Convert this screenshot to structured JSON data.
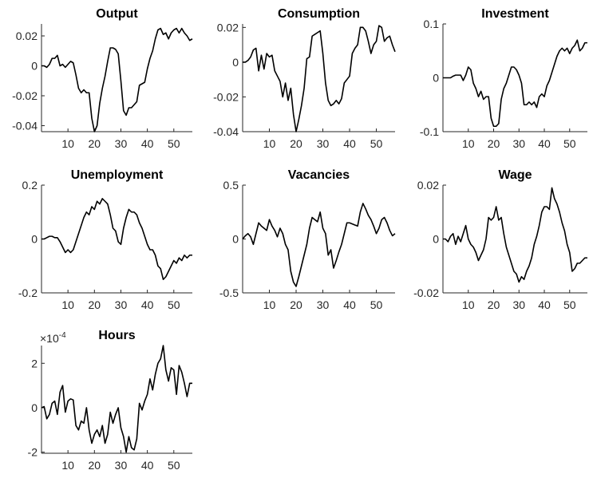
{
  "chart_data": [
    {
      "type": "line",
      "title": "Output",
      "color": "#000000",
      "x": [
        0,
        1,
        2,
        3,
        4,
        5,
        6,
        7,
        8,
        9,
        10,
        11,
        12,
        13,
        14,
        15,
        16,
        17,
        18,
        19,
        20,
        21,
        22,
        23,
        24,
        25,
        26,
        27,
        28,
        29,
        30,
        31,
        32,
        33,
        34,
        35,
        36,
        37,
        38,
        39,
        40,
        41,
        42,
        43,
        44,
        45,
        46,
        47,
        48,
        49,
        50,
        51,
        52,
        53,
        54,
        55,
        56,
        57
      ],
      "values": [
        0,
        0,
        -0.001,
        0.001,
        0.005,
        0.005,
        0.007,
        0,
        0.001,
        -0.001,
        0.001,
        0.003,
        0.002,
        -0.006,
        -0.015,
        -0.018,
        -0.016,
        -0.018,
        -0.018,
        -0.035,
        -0.044,
        -0.04,
        -0.025,
        -0.015,
        -0.007,
        0.003,
        0.012,
        0.012,
        0.011,
        0.008,
        -0.01,
        -0.03,
        -0.033,
        -0.028,
        -0.028,
        -0.026,
        -0.024,
        -0.013,
        -0.012,
        -0.011,
        -0.002,
        0.005,
        0.01,
        0.018,
        0.024,
        0.025,
        0.021,
        0.022,
        0.018,
        0.022,
        0.024,
        0.025,
        0.022,
        0.025,
        0.022,
        0.02,
        0.017,
        0.018
      ],
      "xlim": [
        0,
        57
      ],
      "xticks": [
        10,
        20,
        30,
        40,
        50
      ],
      "ylim": [
        -0.044,
        0.028
      ],
      "yticks": [
        -0.04,
        -0.02,
        0,
        0.02
      ]
    },
    {
      "type": "line",
      "title": "Consumption",
      "color": "#000000",
      "x": [
        0,
        1,
        2,
        3,
        4,
        5,
        6,
        7,
        8,
        9,
        10,
        11,
        12,
        13,
        14,
        15,
        16,
        17,
        18,
        19,
        20,
        21,
        22,
        23,
        24,
        25,
        26,
        27,
        28,
        29,
        30,
        31,
        32,
        33,
        34,
        35,
        36,
        37,
        38,
        39,
        40,
        41,
        42,
        43,
        44,
        45,
        46,
        47,
        48,
        49,
        50,
        51,
        52,
        53,
        54,
        55,
        56,
        57
      ],
      "values": [
        0,
        0,
        0.001,
        0.003,
        0.007,
        0.008,
        -0.005,
        0.004,
        -0.004,
        0.005,
        0.003,
        0.004,
        -0.005,
        -0.008,
        -0.011,
        -0.02,
        -0.012,
        -0.022,
        -0.015,
        -0.03,
        -0.04,
        -0.033,
        -0.025,
        -0.015,
        0.002,
        0.003,
        0.015,
        0.016,
        0.017,
        0.018,
        0.005,
        -0.012,
        -0.022,
        -0.025,
        -0.024,
        -0.022,
        -0.024,
        -0.021,
        -0.012,
        -0.01,
        -0.008,
        0.005,
        0.008,
        0.01,
        0.02,
        0.02,
        0.018,
        0.012,
        0.005,
        0.01,
        0.012,
        0.021,
        0.02,
        0.012,
        0.014,
        0.015,
        0.01,
        0.006
      ],
      "xlim": [
        0,
        57
      ],
      "xticks": [
        10,
        20,
        30,
        40,
        50
      ],
      "ylim": [
        -0.04,
        0.022
      ],
      "yticks": [
        -0.04,
        -0.02,
        0,
        0.02
      ]
    },
    {
      "type": "line",
      "title": "Investment",
      "color": "#000000",
      "x": [
        0,
        1,
        2,
        3,
        4,
        5,
        6,
        7,
        8,
        9,
        10,
        11,
        12,
        13,
        14,
        15,
        16,
        17,
        18,
        19,
        20,
        21,
        22,
        23,
        24,
        25,
        26,
        27,
        28,
        29,
        30,
        31,
        32,
        33,
        34,
        35,
        36,
        37,
        38,
        39,
        40,
        41,
        42,
        43,
        44,
        45,
        46,
        47,
        48,
        49,
        50,
        51,
        52,
        53,
        54,
        55,
        56,
        57
      ],
      "values": [
        0,
        0,
        0,
        0,
        0.003,
        0.005,
        0.005,
        0.005,
        -0.005,
        0.005,
        0.02,
        0.015,
        -0.01,
        -0.02,
        -0.035,
        -0.025,
        -0.04,
        -0.035,
        -0.035,
        -0.075,
        -0.09,
        -0.09,
        -0.085,
        -0.04,
        -0.02,
        -0.01,
        0.005,
        0.02,
        0.02,
        0.015,
        0.005,
        -0.01,
        -0.05,
        -0.05,
        -0.045,
        -0.05,
        -0.045,
        -0.055,
        -0.035,
        -0.03,
        -0.035,
        -0.015,
        -0.005,
        0.01,
        0.025,
        0.04,
        0.05,
        0.055,
        0.05,
        0.055,
        0.045,
        0.055,
        0.06,
        0.07,
        0.05,
        0.055,
        0.065,
        0.065
      ],
      "xlim": [
        0,
        57
      ],
      "xticks": [
        10,
        20,
        30,
        40,
        50
      ],
      "ylim": [
        -0.1,
        0.1
      ],
      "yticks": [
        -0.1,
        0,
        0.1
      ]
    },
    {
      "type": "line",
      "title": "Unemployment",
      "color": "#000000",
      "x": [
        0,
        1,
        2,
        3,
        4,
        5,
        6,
        7,
        8,
        9,
        10,
        11,
        12,
        13,
        14,
        15,
        16,
        17,
        18,
        19,
        20,
        21,
        22,
        23,
        24,
        25,
        26,
        27,
        28,
        29,
        30,
        31,
        32,
        33,
        34,
        35,
        36,
        37,
        38,
        39,
        40,
        41,
        42,
        43,
        44,
        45,
        46,
        47,
        48,
        49,
        50,
        51,
        52,
        53,
        54,
        55,
        56,
        57
      ],
      "values": [
        0,
        0,
        0.005,
        0.01,
        0.01,
        0.005,
        0.005,
        -0.01,
        -0.03,
        -0.05,
        -0.04,
        -0.05,
        -0.04,
        -0.01,
        0.02,
        0.05,
        0.08,
        0.1,
        0.09,
        0.12,
        0.11,
        0.14,
        0.13,
        0.15,
        0.14,
        0.13,
        0.09,
        0.04,
        0.03,
        -0.01,
        -0.02,
        0.04,
        0.08,
        0.11,
        0.1,
        0.1,
        0.09,
        0.06,
        0.04,
        0.01,
        -0.02,
        -0.04,
        -0.04,
        -0.06,
        -0.1,
        -0.11,
        -0.15,
        -0.14,
        -0.12,
        -0.1,
        -0.08,
        -0.09,
        -0.07,
        -0.08,
        -0.06,
        -0.07,
        -0.06,
        -0.06
      ],
      "xlim": [
        0,
        57
      ],
      "xticks": [
        10,
        20,
        30,
        40,
        50
      ],
      "ylim": [
        -0.2,
        0.2
      ],
      "yticks": [
        -0.2,
        0,
        0.2
      ]
    },
    {
      "type": "line",
      "title": "Vacancies",
      "color": "#000000",
      "x": [
        0,
        1,
        2,
        3,
        4,
        5,
        6,
        7,
        8,
        9,
        10,
        11,
        12,
        13,
        14,
        15,
        16,
        17,
        18,
        19,
        20,
        21,
        22,
        23,
        24,
        25,
        26,
        27,
        28,
        29,
        30,
        31,
        32,
        33,
        34,
        35,
        36,
        37,
        38,
        39,
        40,
        41,
        42,
        43,
        44,
        45,
        46,
        47,
        48,
        49,
        50,
        51,
        52,
        53,
        54,
        55,
        56,
        57
      ],
      "values": [
        0,
        0.03,
        0.05,
        0.02,
        -0.05,
        0.05,
        0.15,
        0.12,
        0.1,
        0.08,
        0.18,
        0.12,
        0.08,
        0.02,
        0.1,
        0.05,
        -0.05,
        -0.1,
        -0.3,
        -0.4,
        -0.44,
        -0.35,
        -0.25,
        -0.15,
        -0.05,
        0.1,
        0.2,
        0.18,
        0.16,
        0.25,
        0.1,
        0.05,
        -0.15,
        -0.1,
        -0.27,
        -0.2,
        -0.12,
        -0.05,
        0.05,
        0.15,
        0.15,
        0.14,
        0.13,
        0.12,
        0.25,
        0.33,
        0.28,
        0.22,
        0.18,
        0.12,
        0.05,
        0.1,
        0.18,
        0.2,
        0.15,
        0.08,
        0.03,
        0.05
      ],
      "xlim": [
        0,
        57
      ],
      "xticks": [
        10,
        20,
        30,
        40,
        50
      ],
      "ylim": [
        -0.5,
        0.5
      ],
      "yticks": [
        -0.5,
        0,
        0.5
      ]
    },
    {
      "type": "line",
      "title": "Wage",
      "color": "#000000",
      "x": [
        0,
        1,
        2,
        3,
        4,
        5,
        6,
        7,
        8,
        9,
        10,
        11,
        12,
        13,
        14,
        15,
        16,
        17,
        18,
        19,
        20,
        21,
        22,
        23,
        24,
        25,
        26,
        27,
        28,
        29,
        30,
        31,
        32,
        33,
        34,
        35,
        36,
        37,
        38,
        39,
        40,
        41,
        42,
        43,
        44,
        45,
        46,
        47,
        48,
        49,
        50,
        51,
        52,
        53,
        54,
        55,
        56,
        57
      ],
      "values": [
        0,
        0,
        -0.001,
        0.001,
        0.002,
        -0.002,
        0.001,
        -0.001,
        0.002,
        0.005,
        0,
        -0.002,
        -0.003,
        -0.005,
        -0.008,
        -0.006,
        -0.004,
        0,
        0.008,
        0.007,
        0.008,
        0.012,
        0.007,
        0.008,
        0.002,
        -0.003,
        -0.006,
        -0.009,
        -0.012,
        -0.013,
        -0.016,
        -0.014,
        -0.015,
        -0.012,
        -0.01,
        -0.007,
        -0.002,
        0.001,
        0.005,
        0.01,
        0.012,
        0.012,
        0.011,
        0.019,
        0.015,
        0.013,
        0.01,
        0.006,
        0.003,
        -0.002,
        -0.005,
        -0.012,
        -0.011,
        -0.009,
        -0.009,
        -0.008,
        -0.007,
        -0.007
      ],
      "xlim": [
        0,
        57
      ],
      "xticks": [
        10,
        20,
        30,
        40,
        50
      ],
      "ylim": [
        -0.02,
        0.02
      ],
      "yticks": [
        -0.02,
        0,
        0.02
      ]
    },
    {
      "type": "line",
      "title": "Hours",
      "color": "#000000",
      "y_exponent_base": "×10",
      "y_exponent": "-4",
      "x": [
        0,
        1,
        2,
        3,
        4,
        5,
        6,
        7,
        8,
        9,
        10,
        11,
        12,
        13,
        14,
        15,
        16,
        17,
        18,
        19,
        20,
        21,
        22,
        23,
        24,
        25,
        26,
        27,
        28,
        29,
        30,
        31,
        32,
        33,
        34,
        35,
        36,
        37,
        38,
        39,
        40,
        41,
        42,
        43,
        44,
        45,
        46,
        47,
        48,
        49,
        50,
        51,
        52,
        53,
        54,
        55,
        56,
        57
      ],
      "values": [
        0,
        0.05,
        -0.5,
        -0.3,
        0.2,
        0.3,
        -0.3,
        0.7,
        1.0,
        -0.2,
        0.3,
        0.4,
        0.35,
        -0.8,
        -1.0,
        -0.6,
        -0.7,
        0.0,
        -1.0,
        -1.6,
        -1.2,
        -1.0,
        -1.3,
        -0.8,
        -1.6,
        -1.2,
        -0.2,
        -0.7,
        -0.3,
        0.0,
        -0.9,
        -1.3,
        -2.0,
        -1.3,
        -1.8,
        -1.9,
        -1.4,
        0.2,
        -0.1,
        0.3,
        0.6,
        1.3,
        0.8,
        1.5,
        2.0,
        2.2,
        2.8,
        1.7,
        1.2,
        1.8,
        1.7,
        0.6,
        1.9,
        1.6,
        1.1,
        0.5,
        1.1,
        1.1
      ],
      "xlim": [
        0,
        57
      ],
      "xticks": [
        10,
        20,
        30,
        40,
        50
      ],
      "ylim": [
        -2.05,
        2.8
      ],
      "yticks": [
        -2,
        0,
        2
      ]
    }
  ]
}
